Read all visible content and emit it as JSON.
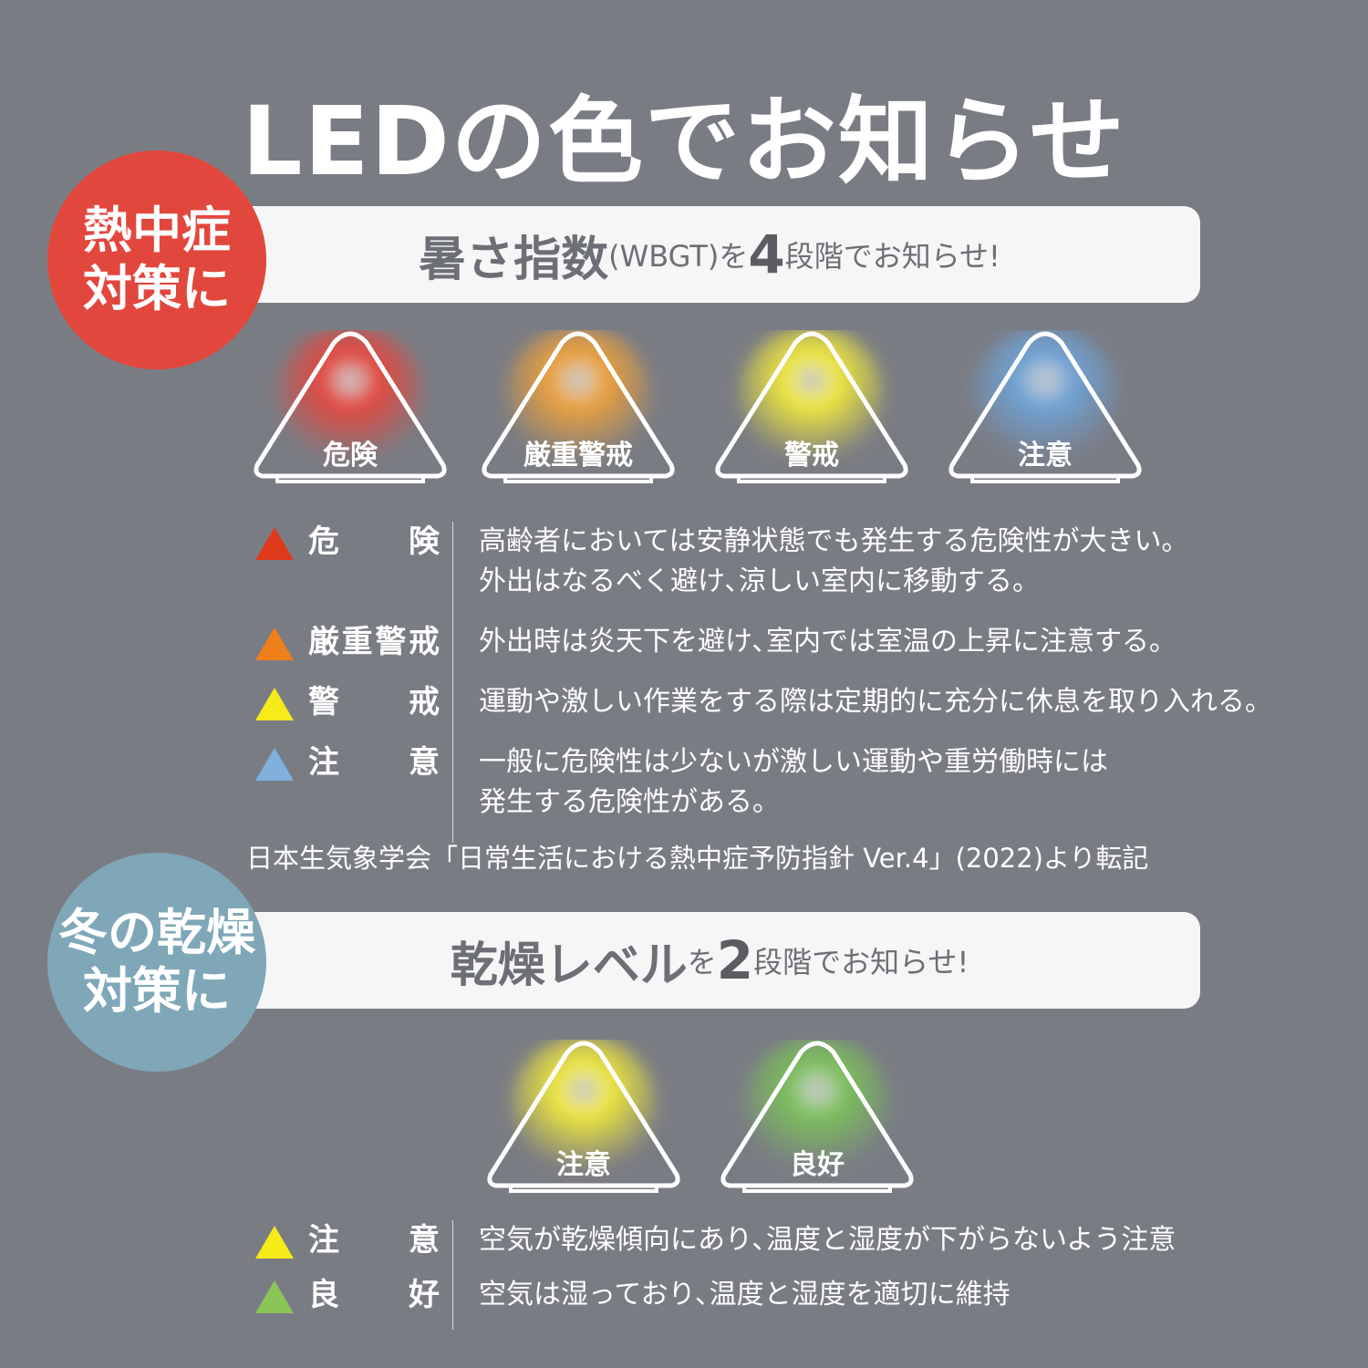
{
  "title": "LEDの色でお知らせ",
  "heat": {
    "badge": [
      "熱中症",
      "対策に"
    ],
    "badge_color": "#e2473d",
    "banner": {
      "a": "暑さ指数",
      "b": "(WBGT)を",
      "num": "4",
      "c": "段階でお知らせ!"
    },
    "lights": [
      {
        "label": "危険",
        "color": "#e8453c"
      },
      {
        "label": "厳重警戒",
        "color": "#f0a23a"
      },
      {
        "label": "警戒",
        "color": "#f2ea3a"
      },
      {
        "label": "注意",
        "color": "#6fa3d8"
      }
    ],
    "levels": [
      {
        "label": "危険",
        "color": "#e03a1c",
        "lines": [
          "高齢者においては安静状態でも発生する危険性が大きい。",
          "外出はなるべく避け､涼しい室内に移動する。"
        ]
      },
      {
        "label": "厳重警戒",
        "color": "#ee7f1a",
        "lines": [
          "外出時は炎天下を避け､室内では室温の上昇に注意する。"
        ]
      },
      {
        "label": "警戒",
        "color": "#f6ea18",
        "lines": [
          "運動や激しい作業をする際は定期的に充分に休息を取り入れる。"
        ]
      },
      {
        "label": "注意",
        "color": "#7fb0de",
        "lines": [
          "一般に危険性は少ないが激しい運動や重労働時には",
          "発生する危険性がある。"
        ]
      }
    ],
    "source": "日本生気象学会「日常生活における熱中症予防指針 Ver.4」(2022)より転記"
  },
  "dry": {
    "badge": [
      "冬の乾燥",
      "対策に"
    ],
    "badge_color": "#7fa7b8",
    "banner": {
      "a": "乾燥レベル",
      "b": "を",
      "num": "2",
      "c": "段階でお知らせ!"
    },
    "lights": [
      {
        "label": "注意",
        "color": "#f2ea3a"
      },
      {
        "label": "良好",
        "color": "#7cc25a"
      }
    ],
    "levels": [
      {
        "label": "注意",
        "color": "#f6ea18",
        "lines": [
          "空気が乾燥傾向にあり､温度と湿度が下がらないよう注意"
        ]
      },
      {
        "label": "良好",
        "color": "#8dc45a",
        "lines": [
          "空気は湿っており､温度と湿度を適切に維持"
        ]
      }
    ]
  }
}
